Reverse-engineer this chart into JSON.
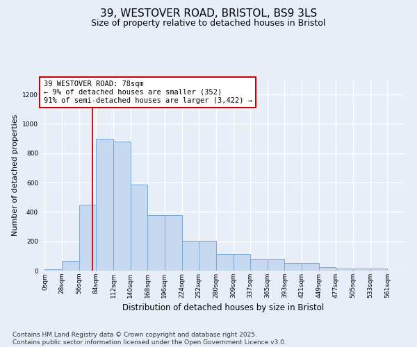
{
  "title": "39, WESTOVER ROAD, BRISTOL, BS9 3LS",
  "subtitle": "Size of property relative to detached houses in Bristol",
  "xlabel": "Distribution of detached houses by size in Bristol",
  "ylabel": "Number of detached properties",
  "bar_color": "#c6d9f0",
  "bar_edge_color": "#7aa8d4",
  "background_color": "#e8eef8",
  "grid_color": "#ffffff",
  "bin_labels": [
    "0sqm",
    "28sqm",
    "56sqm",
    "84sqm",
    "112sqm",
    "140sqm",
    "168sqm",
    "196sqm",
    "224sqm",
    "252sqm",
    "280sqm",
    "309sqm",
    "337sqm",
    "365sqm",
    "393sqm",
    "421sqm",
    "449sqm",
    "477sqm",
    "505sqm",
    "533sqm",
    "561sqm"
  ],
  "bar_values": [
    10,
    65,
    450,
    900,
    880,
    585,
    380,
    380,
    205,
    205,
    115,
    115,
    80,
    80,
    50,
    50,
    25,
    15,
    15,
    15,
    0
  ],
  "ylim": [
    0,
    1300
  ],
  "yticks": [
    0,
    200,
    400,
    600,
    800,
    1000,
    1200
  ],
  "property_line_x": 78,
  "bin_width": 28,
  "annotation_text": "39 WESTOVER ROAD: 78sqm\n← 9% of detached houses are smaller (352)\n91% of semi-detached houses are larger (3,422) →",
  "annotation_box_color": "#ffffff",
  "annotation_edge_color": "#cc0000",
  "vline_color": "#cc0000",
  "footer_text": "Contains HM Land Registry data © Crown copyright and database right 2025.\nContains public sector information licensed under the Open Government Licence v3.0.",
  "title_fontsize": 11,
  "subtitle_fontsize": 9,
  "xlabel_fontsize": 8.5,
  "ylabel_fontsize": 8,
  "annotation_fontsize": 7.5,
  "footer_fontsize": 6.5,
  "tick_fontsize": 6.5
}
